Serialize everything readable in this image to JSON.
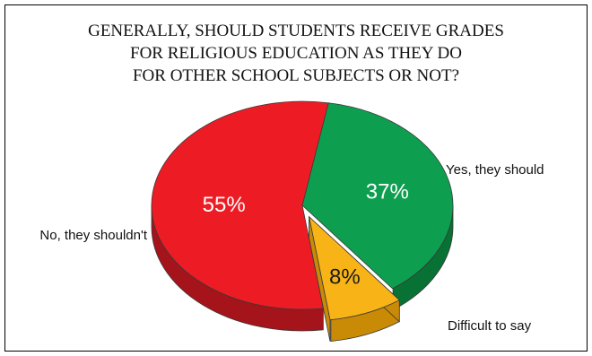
{
  "chart_data": {
    "type": "pie",
    "title_lines": [
      "GENERALLY, SHOULD STUDENTS RECEIVE GRADES",
      "FOR RELIGIOUS EDUCATION AS THEY DO",
      "FOR OTHER SCHOOL SUBJECTS OR NOT?"
    ],
    "slices": [
      {
        "label": "Yes, they should",
        "value": 37,
        "display": "37%",
        "color": "#0d9f4f",
        "side_color": "#077234",
        "label_color": "#ffffff",
        "exploded": false
      },
      {
        "label": "Difficult to say",
        "value": 8,
        "display": "8%",
        "color": "#f8b416",
        "side_color": "#c98a06",
        "label_color": "#1a1a1a",
        "exploded": true
      },
      {
        "label": "No, they shouldn't",
        "value": 55,
        "display": "55%",
        "color": "#ed1c24",
        "side_color": "#a4141a",
        "label_color": "#ffffff",
        "exploded": false
      }
    ],
    "legend": "none",
    "style": "3d-exploded"
  }
}
